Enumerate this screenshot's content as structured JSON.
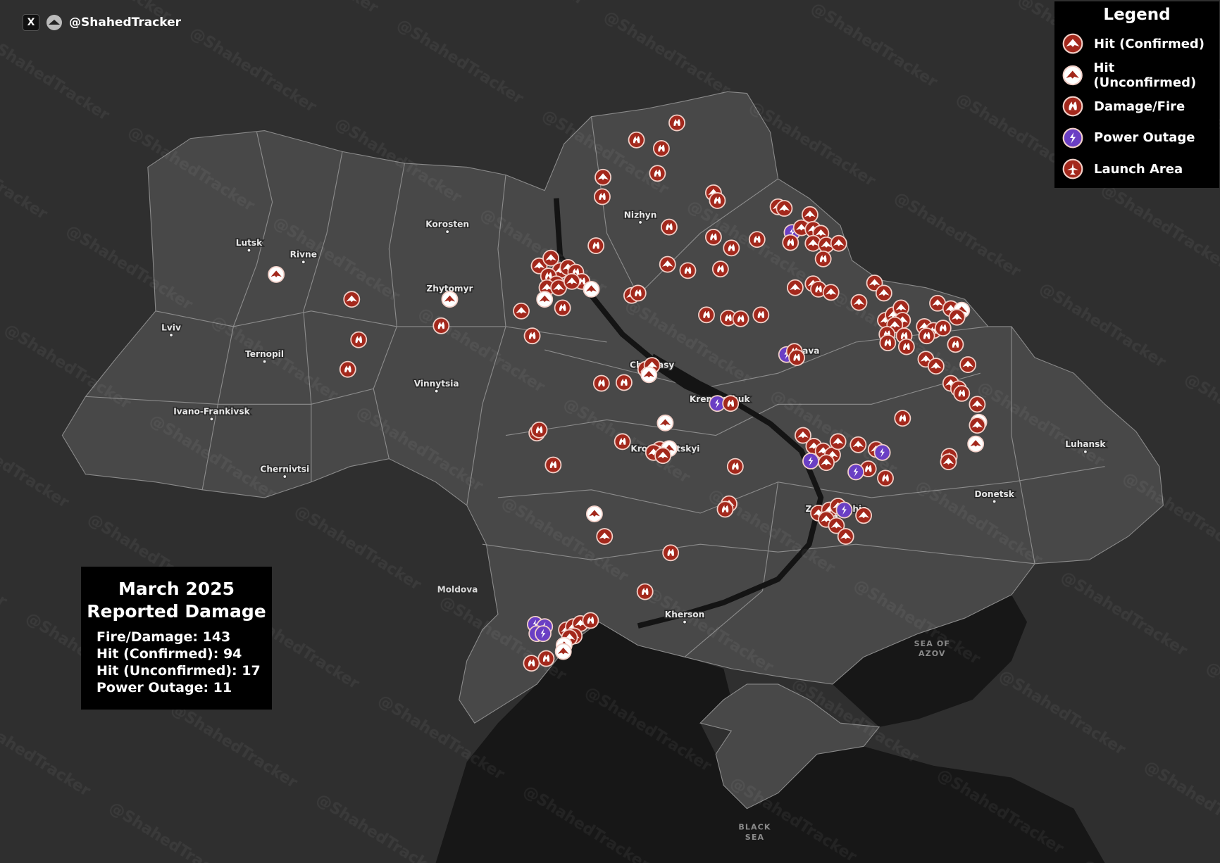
{
  "header": {
    "x_label": "X",
    "handle": "@ShahedTracker"
  },
  "watermark": "@ShahedTracker",
  "legend": {
    "title": "Legend",
    "items": [
      {
        "label": "Hit (Confirmed)",
        "icon": "hit-confirmed-icon"
      },
      {
        "label": "Hit (Unconfirmed)",
        "icon": "hit-unconfirmed-icon"
      },
      {
        "label": "Damage/Fire",
        "icon": "fire-icon"
      },
      {
        "label": "Power Outage",
        "icon": "power-outage-icon"
      },
      {
        "label": "Launch Area",
        "icon": "launch-area-icon"
      }
    ]
  },
  "summary": {
    "title_line1": "March 2025",
    "title_line2": "Reported Damage",
    "stats": [
      "Fire/Damage: 143",
      "Hit (Confirmed): 94",
      "Hit (Unconfirmed): 17",
      "Power Outage: 11"
    ]
  },
  "map": {
    "cities": [
      "Lutsk",
      "Rivne",
      "Korosten",
      "Zhytomyr",
      "Lviv",
      "Ternopil",
      "Vinnytsia",
      "Ivano-Frankivsk",
      "Chernivtsi",
      "Nizhyn",
      "Cherkasy",
      "Kremenchuk",
      "Kropyvnytskyi",
      "Poltava",
      "Zaporizhzhia",
      "Luhansk",
      "Donetsk",
      "Kherson"
    ],
    "countries": [
      "Moldova"
    ],
    "seas": {
      "azov_1": "SEA OF",
      "azov_2": "AZOV",
      "black_1": "BLACK",
      "black_2": "SEA"
    }
  },
  "colors": {
    "confirmed": "#a3281c",
    "unconfirmed": "#ffffff",
    "fire": "#a3281c",
    "power": "#6a3fc4",
    "land": "#484848",
    "outside": "#2f2f2f",
    "sea": "#171717"
  }
}
